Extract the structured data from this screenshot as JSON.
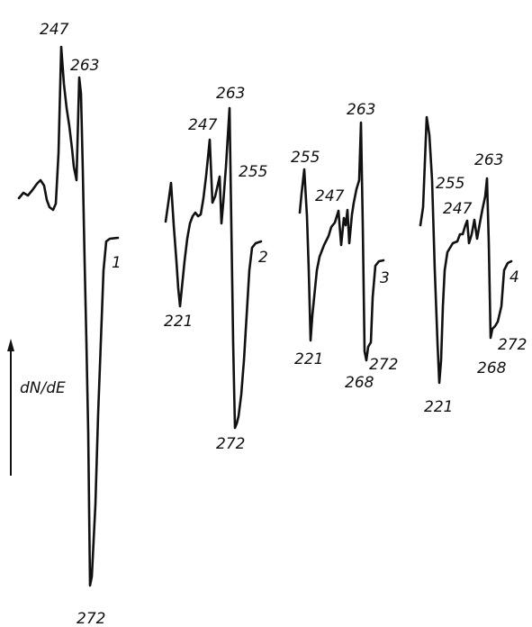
{
  "chart_data": {
    "type": "line",
    "ylabel": "dN/dE",
    "series": [
      {
        "name": "1",
        "peaks": [
          {
            "label": "247",
            "sign": "max"
          },
          {
            "label": "263",
            "sign": "max"
          },
          {
            "label": "272",
            "sign": "min"
          }
        ]
      },
      {
        "name": "2",
        "peaks": [
          {
            "label": "221",
            "sign": "min"
          },
          {
            "label": "247",
            "sign": "max"
          },
          {
            "label": "263",
            "sign": "max"
          },
          {
            "label": "255",
            "sign": "max"
          },
          {
            "label": "272",
            "sign": "min"
          }
        ]
      },
      {
        "name": "3",
        "peaks": [
          {
            "label": "255",
            "sign": "max"
          },
          {
            "label": "247",
            "sign": "max"
          },
          {
            "label": "263",
            "sign": "max"
          },
          {
            "label": "221",
            "sign": "min"
          },
          {
            "label": "272",
            "sign": "min"
          },
          {
            "label": "268",
            "sign": "min"
          }
        ]
      },
      {
        "name": "4",
        "peaks": [
          {
            "label": "255",
            "sign": "max"
          },
          {
            "label": "247",
            "sign": "max"
          },
          {
            "label": "263",
            "sign": "max"
          },
          {
            "label": "221",
            "sign": "min"
          },
          {
            "label": "272",
            "sign": "min"
          },
          {
            "label": "268",
            "sign": "min"
          }
        ]
      }
    ]
  }
}
